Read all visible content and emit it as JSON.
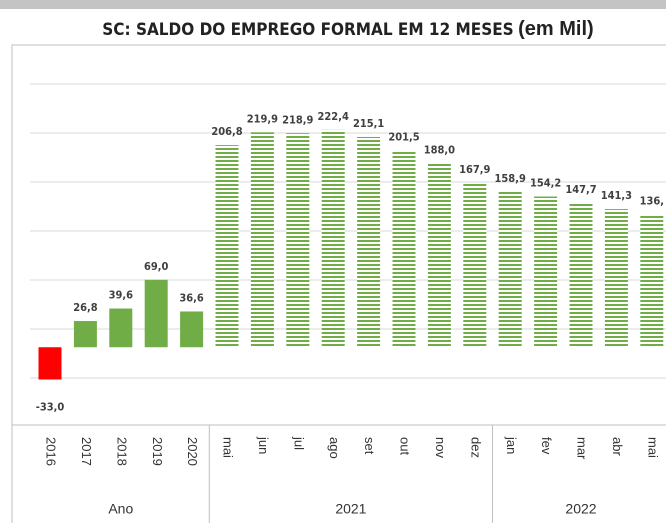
{
  "chart_data": {
    "type": "bar",
    "title": "SC: SALDO DO EMPREGO FORMAL EM 12 MESES",
    "title_unit": "(em Mil)",
    "categories": [
      "2016",
      "2017",
      "2018",
      "2019",
      "2020",
      "mai",
      "jun",
      "jul",
      "ago",
      "set",
      "out",
      "nov",
      "dez",
      "jan",
      "fev",
      "mar",
      "abr",
      "mai"
    ],
    "groups": [
      {
        "label": "Ano",
        "count": 5
      },
      {
        "label": "2021",
        "count": 8
      },
      {
        "label": "2022",
        "count": 5
      }
    ],
    "values": [
      -33.0,
      26.8,
      39.6,
      69.0,
      36.6,
      206.8,
      219.9,
      218.9,
      222.4,
      215.1,
      201.5,
      188.0,
      167.9,
      158.9,
      154.2,
      147.7,
      141.3,
      136
    ],
    "value_labels": [
      "-33,0",
      "26,8",
      "39,6",
      "69,0",
      "36,6",
      "206,8",
      "219,9",
      "218,9",
      "222,4",
      "215,1",
      "201,5",
      "188,0",
      "167,9",
      "158,9",
      "154,2",
      "147,7",
      "141,3",
      "136,"
    ],
    "colors": [
      "#ff0000",
      "#70ad47",
      "#70ad47",
      "#70ad47",
      "#70ad47",
      "#70ad47",
      "#70ad47",
      "#70ad47",
      "#70ad47",
      "#70ad47",
      "#70ad47",
      "#70ad47",
      "#70ad47",
      "#70ad47",
      "#70ad47",
      "#70ad47",
      "#70ad47",
      "#70ad47"
    ],
    "striped": [
      false,
      false,
      false,
      false,
      false,
      true,
      true,
      true,
      true,
      true,
      true,
      true,
      true,
      true,
      true,
      true,
      true,
      true
    ],
    "ylim": [
      -55,
      300
    ],
    "grid": true
  }
}
